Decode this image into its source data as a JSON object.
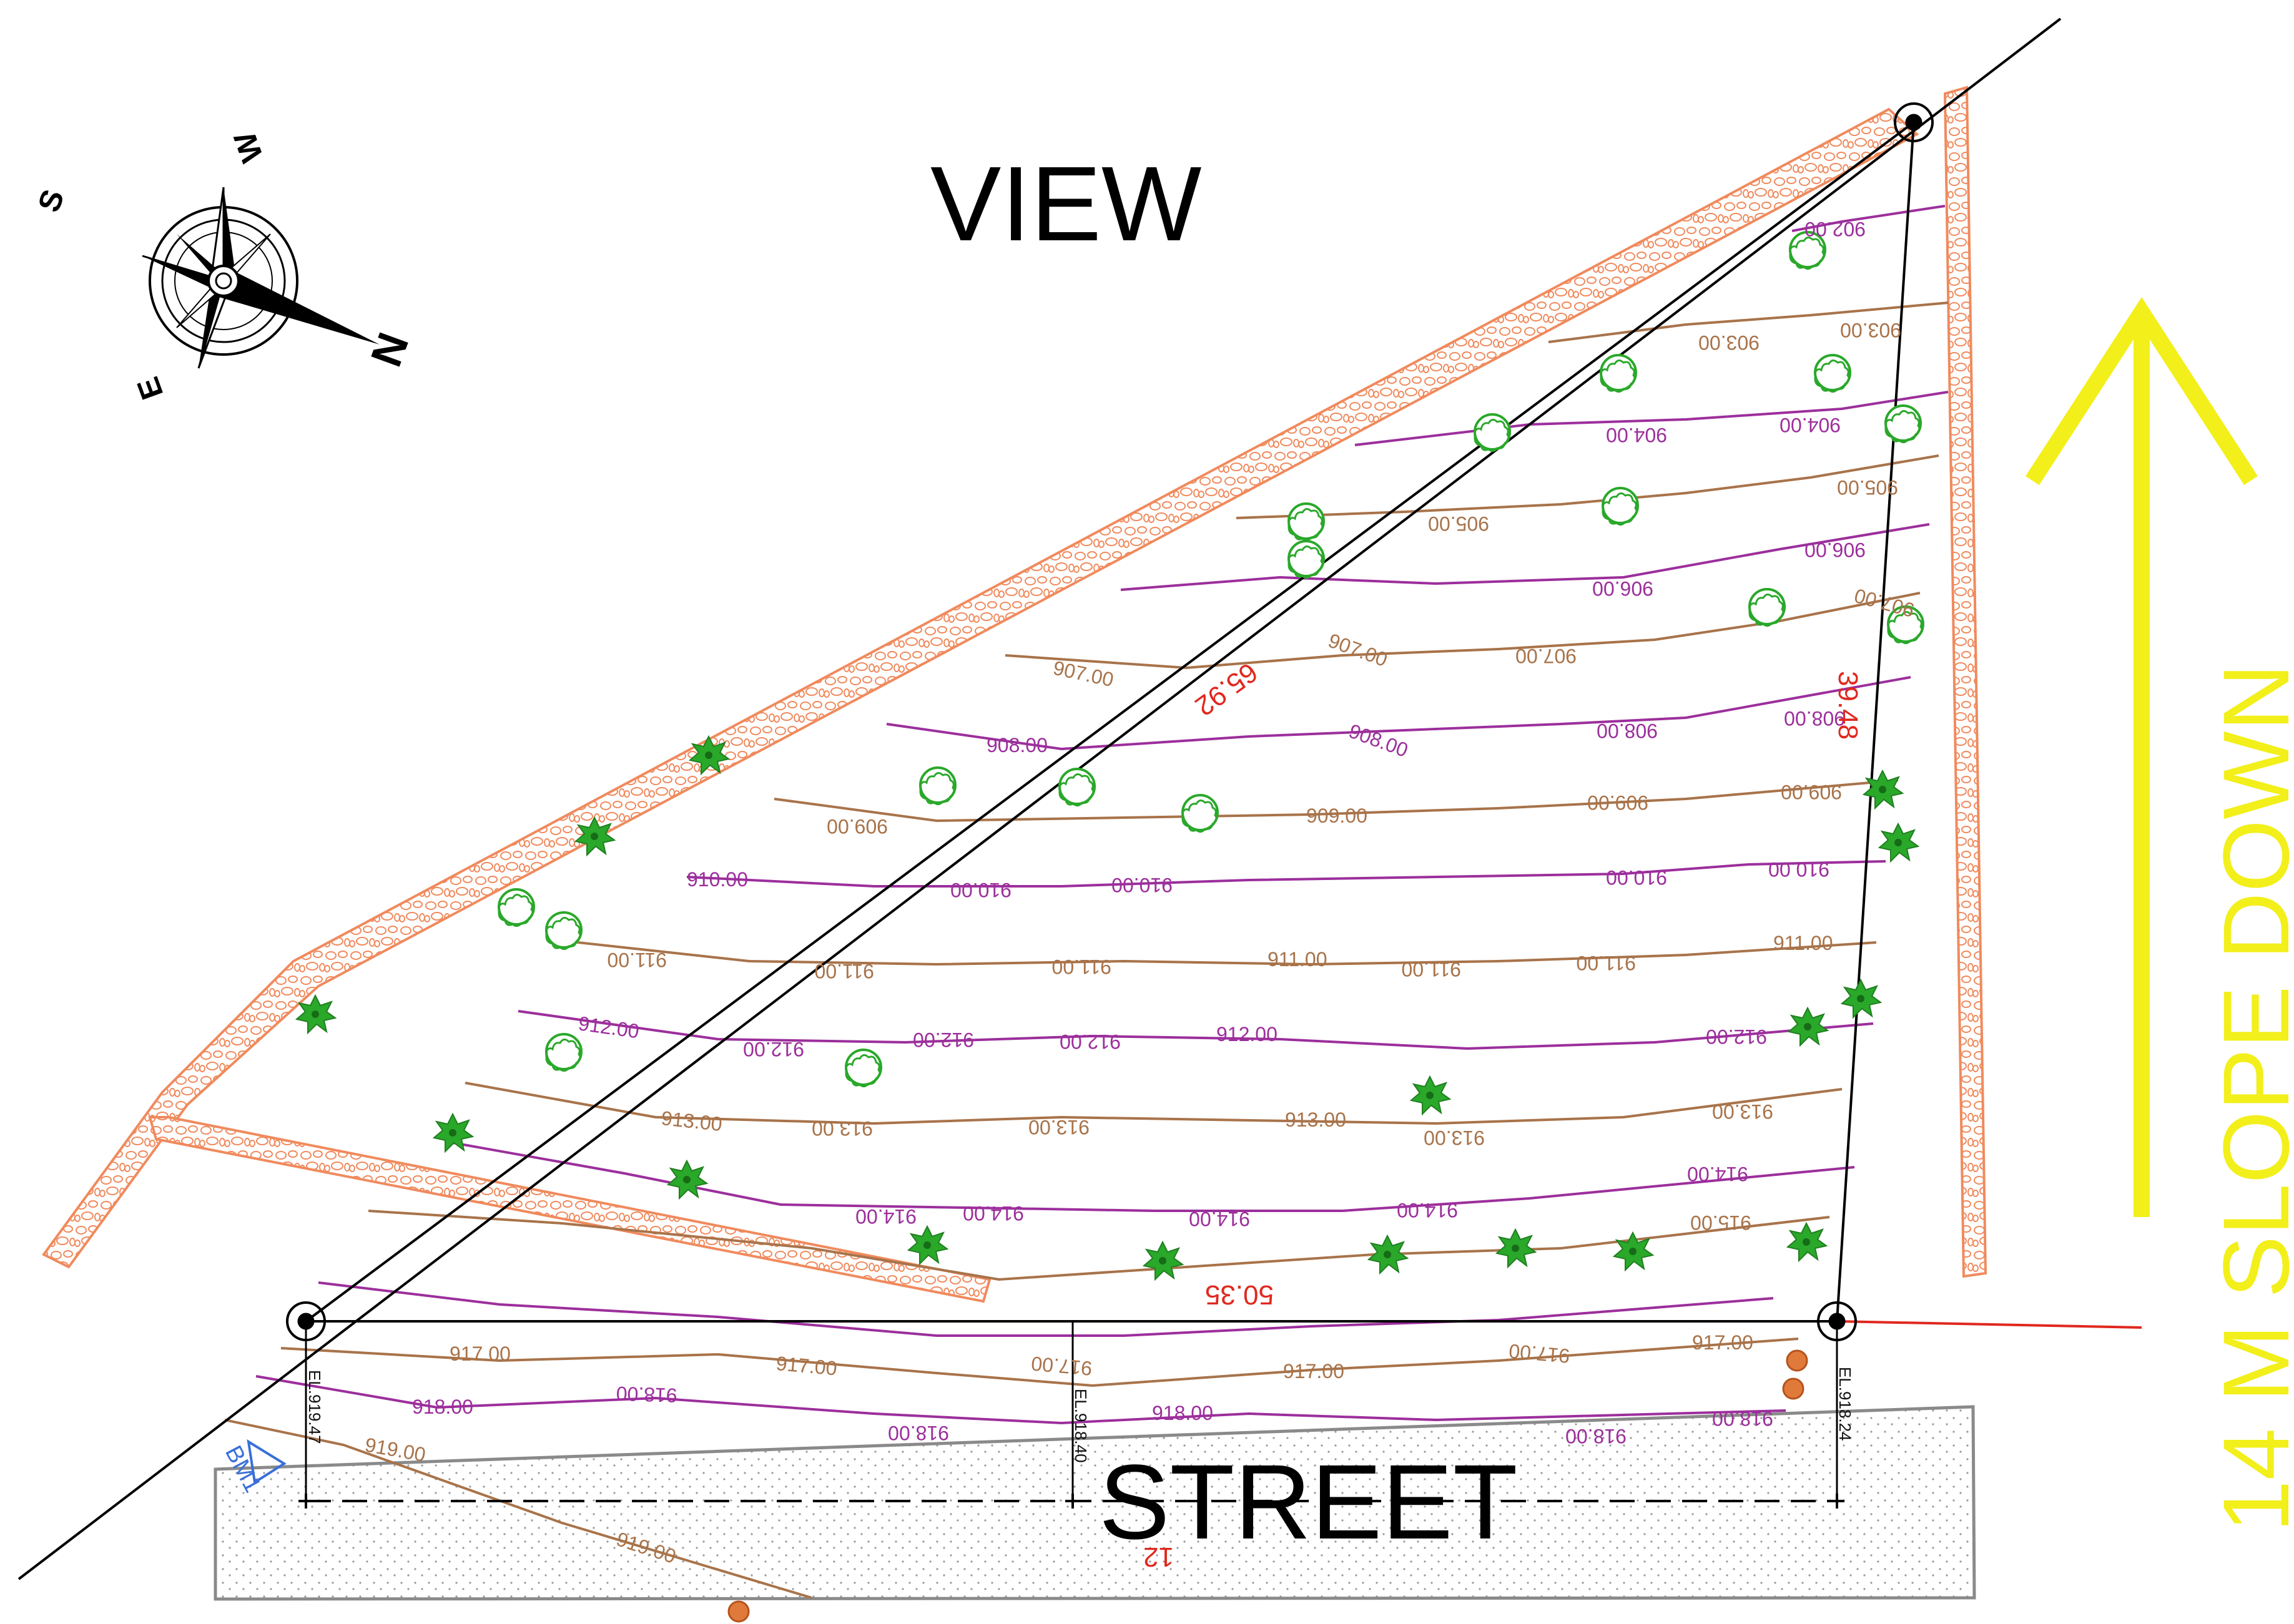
{
  "title": "VIEW",
  "street_label": "STREET",
  "slope_label": "14 M SLOPE DOWN",
  "compass": {
    "n": "N",
    "s": "S",
    "e": "E",
    "w": "W"
  },
  "dimensions": {
    "north_side": "65.92",
    "east_side": "39.48",
    "south_side": "50.35",
    "street_width": "12"
  },
  "elevations": {
    "west": "EL.919.47",
    "middle": "EL.918.40",
    "east": "EL.918.24"
  },
  "benchmark": "BM1",
  "contours": {
    "c902": "902.00",
    "c903": "903.00",
    "c904": "904.00",
    "c905": "905.00",
    "c906": "906.00",
    "c907": "907.00",
    "c908": "908.00",
    "c909": "909.00",
    "c910": "910.00",
    "c911": "911.00",
    "c912": "912.00",
    "c913": "913.00",
    "c914": "914.00",
    "c915": "915.00",
    "c917": "917.00",
    "c918": "918.00",
    "c919": "919.00"
  },
  "colors": {
    "wall": "#f08a5d",
    "contour_major": "#a8734a",
    "contour_minor": "#9c2f9c",
    "tree": "#2aa82a",
    "dimension": "#e0281e",
    "arrow": "#f2ef1a",
    "benchmark": "#3a6fd8"
  },
  "icons": [
    "compass-rose-icon",
    "north-arrow-icon",
    "tree-icon",
    "shrub-icon",
    "survey-point-icon",
    "benchmark-icon"
  ]
}
